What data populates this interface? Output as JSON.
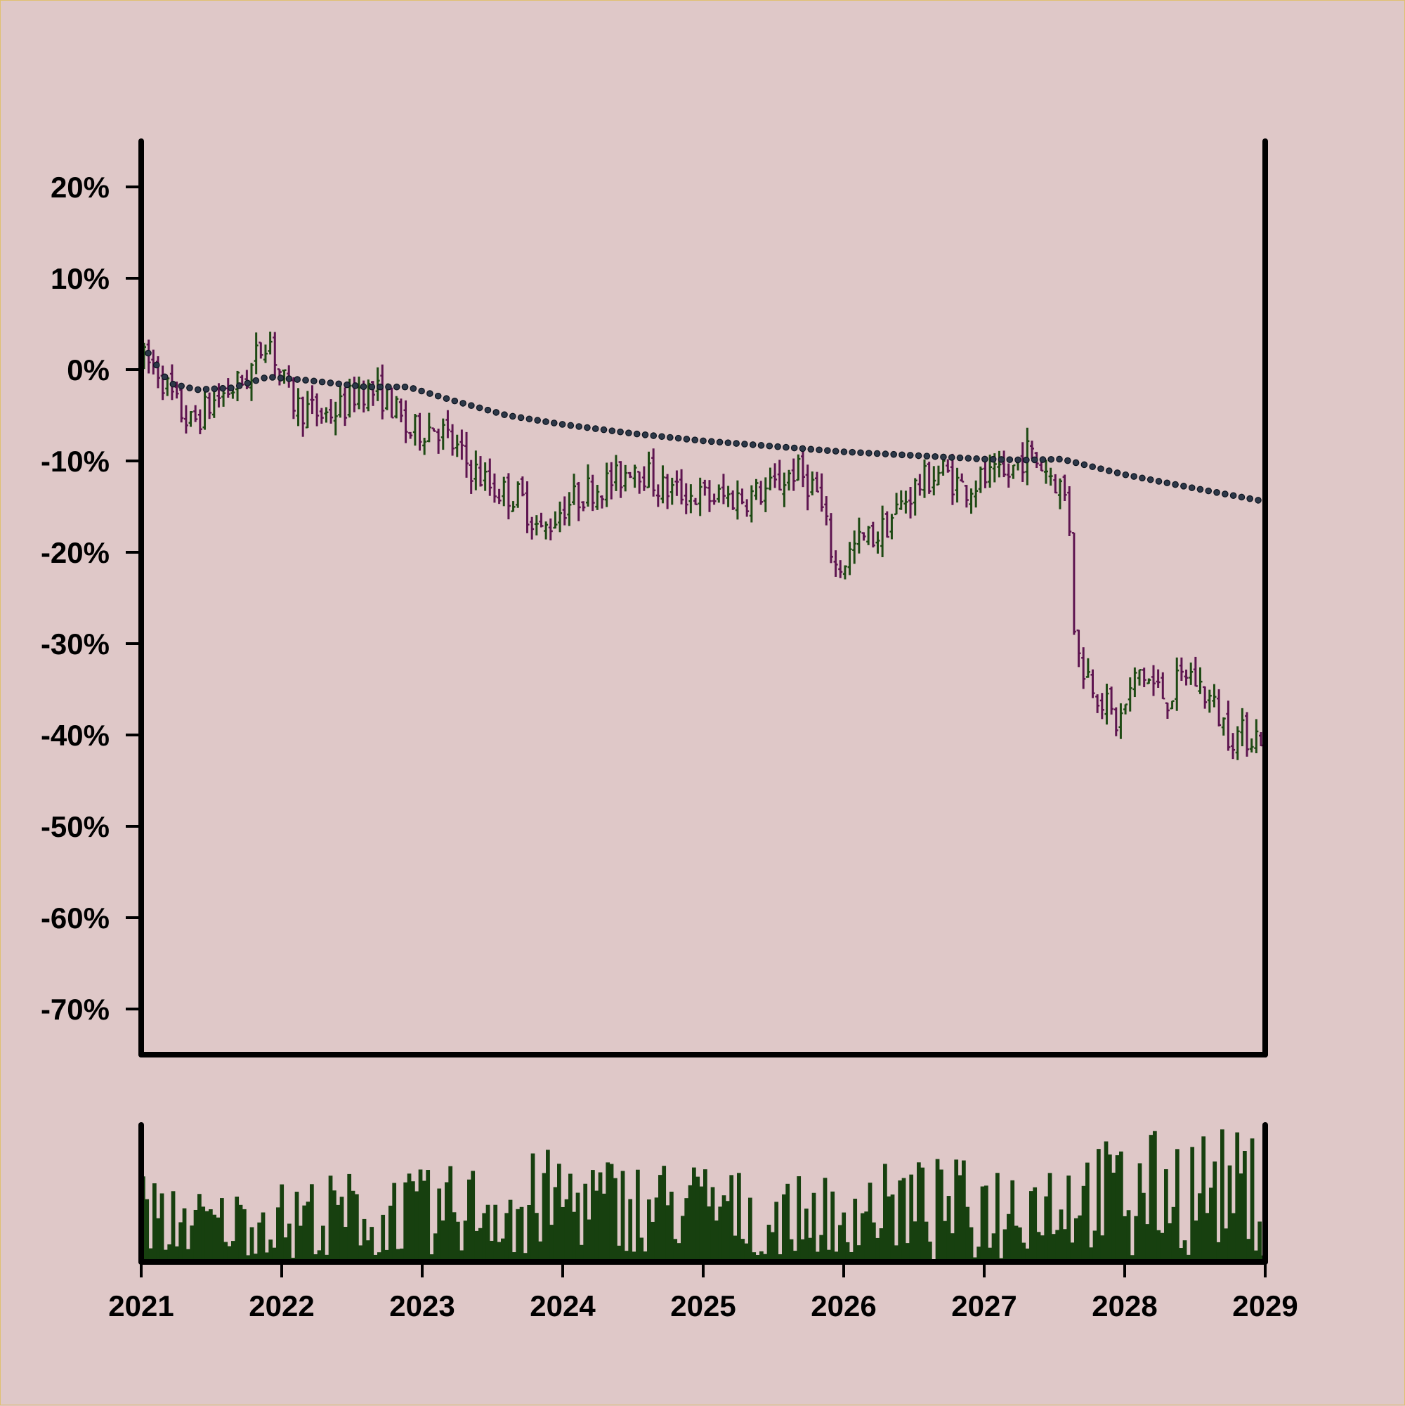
{
  "chart_data": {
    "type": "ohlc",
    "title": "",
    "xlabel": "",
    "ylabel": "",
    "x_range": [
      2021,
      2029
    ],
    "ylim": [
      -75,
      25
    ],
    "y_ticks": [
      "20%",
      "10%",
      "0%",
      "-10%",
      "-20%",
      "-30%",
      "-40%",
      "-50%",
      "-60%",
      "-70%"
    ],
    "y_tick_values": [
      20,
      10,
      0,
      -10,
      -20,
      -30,
      -40,
      -50,
      -60,
      -70
    ],
    "x_ticks": [
      "2021",
      "2022",
      "2023",
      "2024",
      "2025",
      "2026",
      "2027",
      "2028",
      "2029"
    ],
    "x_tick_values": [
      2021,
      2022,
      2023,
      2024,
      2025,
      2026,
      2027,
      2028,
      2029
    ],
    "grid": false,
    "legend": "none",
    "series_close_anchors": [
      [
        2021.02,
        1
      ],
      [
        2021.12,
        0
      ],
      [
        2021.25,
        -4
      ],
      [
        2021.35,
        -6
      ],
      [
        2021.55,
        -3
      ],
      [
        2021.75,
        -1
      ],
      [
        2021.9,
        4
      ],
      [
        2022.0,
        -1
      ],
      [
        2022.1,
        -4
      ],
      [
        2022.3,
        -5
      ],
      [
        2022.45,
        -4
      ],
      [
        2022.55,
        -2
      ],
      [
        2022.75,
        -3
      ],
      [
        2022.9,
        -7
      ],
      [
        2023.1,
        -6
      ],
      [
        2023.3,
        -10
      ],
      [
        2023.5,
        -13
      ],
      [
        2023.7,
        -14
      ],
      [
        2023.85,
        -18
      ],
      [
        2024.0,
        -15
      ],
      [
        2024.2,
        -13
      ],
      [
        2024.4,
        -12
      ],
      [
        2024.5,
        -10
      ],
      [
        2024.7,
        -13
      ],
      [
        2025.0,
        -14
      ],
      [
        2025.3,
        -14
      ],
      [
        2025.5,
        -13
      ],
      [
        2025.65,
        -11
      ],
      [
        2025.8,
        -13
      ],
      [
        2025.95,
        -22
      ],
      [
        2026.1,
        -19
      ],
      [
        2026.25,
        -18
      ],
      [
        2026.5,
        -13
      ],
      [
        2026.7,
        -11
      ],
      [
        2026.85,
        -13
      ],
      [
        2027.0,
        -12
      ],
      [
        2027.15,
        -12
      ],
      [
        2027.3,
        -9
      ],
      [
        2027.45,
        -11
      ],
      [
        2027.55,
        -13
      ],
      [
        2027.6,
        -15
      ],
      [
        2027.65,
        -31
      ],
      [
        2027.8,
        -35
      ],
      [
        2027.95,
        -39
      ],
      [
        2028.1,
        -33
      ],
      [
        2028.3,
        -36
      ],
      [
        2028.45,
        -33
      ],
      [
        2028.6,
        -36
      ],
      [
        2028.75,
        -40
      ],
      [
        2028.95,
        -40
      ]
    ],
    "trend_anchors": [
      [
        2021.05,
        1.8
      ],
      [
        2021.2,
        -1.5
      ],
      [
        2021.4,
        -2.2
      ],
      [
        2021.65,
        -2
      ],
      [
        2021.9,
        -0.8
      ],
      [
        2022.2,
        -1.2
      ],
      [
        2022.6,
        -1.9
      ],
      [
        2022.9,
        -1.9
      ],
      [
        2023.2,
        -3.3
      ],
      [
        2023.6,
        -5
      ],
      [
        2024.0,
        -6
      ],
      [
        2024.5,
        -7
      ],
      [
        2025.0,
        -7.8
      ],
      [
        2025.5,
        -8.4
      ],
      [
        2026.0,
        -9
      ],
      [
        2026.5,
        -9.4
      ],
      [
        2027.0,
        -9.8
      ],
      [
        2027.3,
        -9.9
      ],
      [
        2027.55,
        -9.8
      ],
      [
        2028.0,
        -11.5
      ],
      [
        2028.5,
        -13
      ],
      [
        2028.95,
        -14.3
      ]
    ],
    "volume_anchors": [
      [
        2021.0,
        0.4
      ],
      [
        2021.5,
        0.3
      ],
      [
        2022.0,
        0.35
      ],
      [
        2022.5,
        0.4
      ],
      [
        2023.0,
        0.4
      ],
      [
        2023.5,
        0.45
      ],
      [
        2024.0,
        0.5
      ],
      [
        2024.5,
        0.45
      ],
      [
        2025.0,
        0.45
      ],
      [
        2025.5,
        0.35
      ],
      [
        2026.0,
        0.4
      ],
      [
        2026.5,
        0.45
      ],
      [
        2027.0,
        0.45
      ],
      [
        2027.5,
        0.5
      ],
      [
        2028.0,
        0.55
      ],
      [
        2028.5,
        0.6
      ],
      [
        2029.0,
        0.55
      ]
    ],
    "colors": {
      "background": "#dfc8c8",
      "up": "#1e4a14",
      "down": "#5e1550",
      "trend": "#2d3848",
      "volume": "#17400f",
      "axis": "#000000"
    }
  }
}
